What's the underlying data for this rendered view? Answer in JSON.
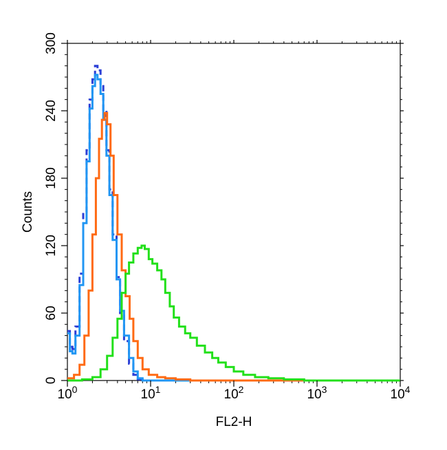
{
  "chart_data": {
    "type": "line",
    "xlabel": "FL2-H",
    "ylabel": "Counts",
    "x_scale": "log",
    "xlim": [
      1,
      10000
    ],
    "ylim": [
      0,
      300
    ],
    "y_ticks": [
      "0",
      "60",
      "120",
      "180",
      "240",
      "300"
    ],
    "x_ticks": [
      {
        "base": "10",
        "exp": "0"
      },
      {
        "base": "10",
        "exp": "1"
      },
      {
        "base": "10",
        "exp": "2"
      },
      {
        "base": "10",
        "exp": "3"
      },
      {
        "base": "10",
        "exp": "4"
      }
    ],
    "grid": false,
    "legend": "none",
    "series": [
      {
        "color": "#2b3fd6",
        "style": "dashed",
        "points": [
          [
            1.0,
            44
          ],
          [
            1.07,
            30
          ],
          [
            1.15,
            28
          ],
          [
            1.25,
            48
          ],
          [
            1.4,
            95
          ],
          [
            1.55,
            150
          ],
          [
            1.7,
            205
          ],
          [
            1.85,
            250
          ],
          [
            2.0,
            268
          ],
          [
            2.15,
            280
          ],
          [
            2.3,
            276
          ],
          [
            2.5,
            262
          ],
          [
            2.7,
            240
          ],
          [
            2.95,
            205
          ],
          [
            3.2,
            170
          ],
          [
            3.5,
            130
          ],
          [
            3.9,
            92
          ],
          [
            4.3,
            60
          ],
          [
            4.8,
            35
          ],
          [
            5.5,
            15
          ],
          [
            6.2,
            5
          ],
          [
            7.0,
            1
          ],
          [
            8.0,
            0
          ],
          [
            10000,
            0
          ]
        ]
      },
      {
        "color": "#2196f3",
        "style": "solid",
        "points": [
          [
            1.0,
            42
          ],
          [
            1.07,
            26
          ],
          [
            1.15,
            24
          ],
          [
            1.25,
            40
          ],
          [
            1.4,
            85
          ],
          [
            1.55,
            140
          ],
          [
            1.7,
            195
          ],
          [
            1.85,
            242
          ],
          [
            2.0,
            262
          ],
          [
            2.15,
            272
          ],
          [
            2.3,
            268
          ],
          [
            2.5,
            255
          ],
          [
            2.7,
            232
          ],
          [
            2.95,
            200
          ],
          [
            3.2,
            165
          ],
          [
            3.5,
            125
          ],
          [
            3.9,
            90
          ],
          [
            4.3,
            62
          ],
          [
            4.8,
            40
          ],
          [
            5.5,
            20
          ],
          [
            6.2,
            8
          ],
          [
            7.0,
            2
          ],
          [
            8.0,
            0
          ],
          [
            10000,
            0
          ]
        ]
      },
      {
        "color": "#ff6a13",
        "style": "solid",
        "points": [
          [
            1.0,
            2
          ],
          [
            1.2,
            5
          ],
          [
            1.4,
            14
          ],
          [
            1.6,
            40
          ],
          [
            1.8,
            80
          ],
          [
            2.0,
            130
          ],
          [
            2.2,
            180
          ],
          [
            2.4,
            215
          ],
          [
            2.6,
            232
          ],
          [
            2.8,
            238
          ],
          [
            3.0,
            228
          ],
          [
            3.3,
            200
          ],
          [
            3.6,
            165
          ],
          [
            4.0,
            130
          ],
          [
            4.5,
            98
          ],
          [
            5.0,
            75
          ],
          [
            5.6,
            55
          ],
          [
            6.2,
            35
          ],
          [
            7.0,
            20
          ],
          [
            8.0,
            10
          ],
          [
            9.5,
            5
          ],
          [
            12,
            3
          ],
          [
            15,
            2
          ],
          [
            20,
            1
          ],
          [
            30,
            0
          ],
          [
            10000,
            0
          ]
        ]
      },
      {
        "color": "#22e01a",
        "style": "solid",
        "points": [
          [
            1.0,
            0
          ],
          [
            1.5,
            1
          ],
          [
            2.0,
            3
          ],
          [
            2.5,
            10
          ],
          [
            3.0,
            22
          ],
          [
            3.5,
            38
          ],
          [
            4.0,
            55
          ],
          [
            4.5,
            78
          ],
          [
            5.0,
            95
          ],
          [
            5.5,
            105
          ],
          [
            6.2,
            113
          ],
          [
            7.0,
            118
          ],
          [
            7.8,
            120
          ],
          [
            8.5,
            117
          ],
          [
            9.5,
            108
          ],
          [
            10.5,
            104
          ],
          [
            12,
            98
          ],
          [
            13.5,
            90
          ],
          [
            15,
            78
          ],
          [
            17,
            66
          ],
          [
            19,
            56
          ],
          [
            22,
            48
          ],
          [
            26,
            42
          ],
          [
            30,
            38
          ],
          [
            36,
            31
          ],
          [
            45,
            25
          ],
          [
            55,
            20
          ],
          [
            65,
            16
          ],
          [
            80,
            12
          ],
          [
            100,
            8
          ],
          [
            130,
            5
          ],
          [
            180,
            3
          ],
          [
            260,
            2
          ],
          [
            400,
            1
          ],
          [
            700,
            0
          ],
          [
            10000,
            0
          ]
        ]
      }
    ]
  }
}
